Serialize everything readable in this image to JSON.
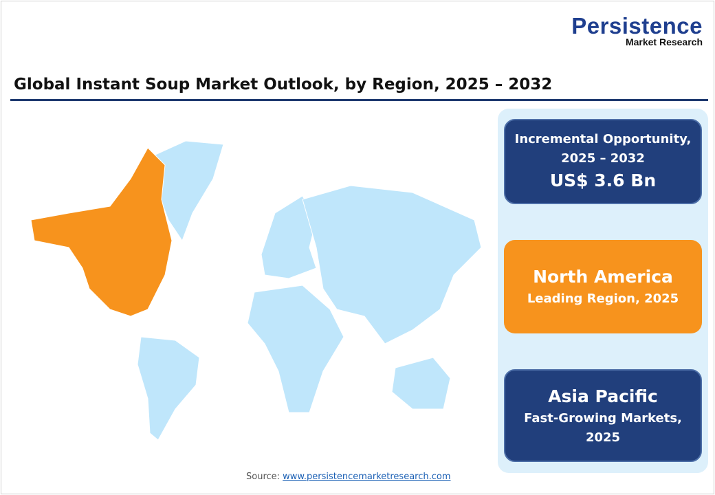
{
  "logo": {
    "name": "Persistence",
    "sub": "Market Research"
  },
  "title": "Global Instant Soup Market Outlook, by Region, 2025 – 2032",
  "cards": [
    {
      "line1": "Incremental Opportunity,",
      "line2": "2025 – 2032",
      "value": "US$ 3.6 Bn"
    },
    {
      "value": "North America",
      "line1": "Leading Region, 2025"
    },
    {
      "value": "Asia Pacific",
      "line1": "Fast-Growing Markets,",
      "line2": "2025"
    }
  ],
  "map": {
    "highlighted_region": "North America",
    "colors": {
      "highlight": "#f7931d",
      "other": "#bfe6fb"
    }
  },
  "source": {
    "label": "Source:",
    "link": "www.persistencemarketresearch.com"
  },
  "colors": {
    "navy": "#213f7c",
    "orange": "#f7931d",
    "panel": "#ddf0fb"
  }
}
